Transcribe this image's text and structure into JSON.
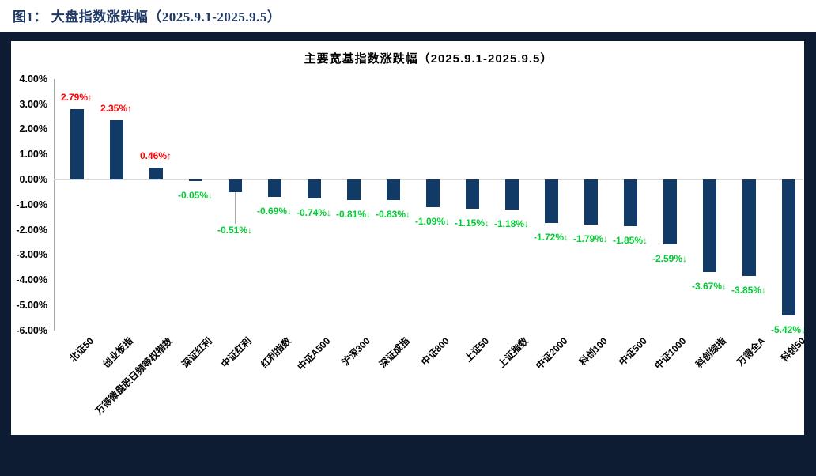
{
  "page": {
    "background": "#FFFFFF"
  },
  "figure": {
    "caption": "图1： 大盘指数涨跌幅（2025.9.1-2025.9.5）",
    "caption_color": "#1F3864",
    "frame_color": "#0D1B33"
  },
  "chart_data": {
    "type": "bar",
    "title": "主要宽基指数涨跌幅（2025.9.1-2025.9.5）",
    "categories": [
      "北证50",
      "创业板指",
      "万得微盘股日频等权指数",
      "深证红利",
      "中证红利",
      "红利指数",
      "中证A500",
      "沪深300",
      "深证成指",
      "中证800",
      "上证50",
      "上证指数",
      "中证2000",
      "科创100",
      "中证500",
      "中证1000",
      "科创综指",
      "万得全A",
      "科创50"
    ],
    "values": [
      2.79,
      2.35,
      0.46,
      -0.05,
      -0.51,
      -0.69,
      -0.74,
      -0.81,
      -0.83,
      -1.09,
      -1.15,
      -1.18,
      -1.72,
      -1.79,
      -1.85,
      -2.59,
      -3.67,
      -3.85,
      -5.42
    ],
    "point_labels": [
      "2.79%↑",
      "2.35%↑",
      "0.46%↑",
      "-0.05%↓",
      "-0.51%↓",
      "-0.69%↓",
      "-0.74%↓",
      "-0.81%↓",
      "-0.83%↓",
      "-1.09%↓",
      "-1.15%↓",
      "-1.18%↓",
      "-1.72%↓",
      "-1.79%↓",
      "-1.85%↓",
      "-2.59%↓",
      "-3.67%↓",
      "-3.85%↓",
      "-5.42%↓"
    ],
    "ylim": [
      -6,
      4
    ],
    "ytick_values": [
      4,
      3,
      2,
      1,
      0,
      -1,
      -2,
      -3,
      -4,
      -5,
      -6
    ],
    "ytick_labels": [
      "4.00%",
      "3.00%",
      "2.00%",
      "1.00%",
      "0.00%",
      "-1.00%",
      "-2.00%",
      "-3.00%",
      "-4.00%",
      "-5.00%",
      "-6.00%"
    ],
    "bar_color": "#123A66",
    "up_label_color": "#FF0000",
    "down_label_color": "#00CC33",
    "axis_color": "#A6A6A6",
    "zero_line_color": "#D9D9D9",
    "grid": "zero line only",
    "legend": "none",
    "callout": {
      "index": 4,
      "extra_offset": 30,
      "leader_line": true
    }
  }
}
